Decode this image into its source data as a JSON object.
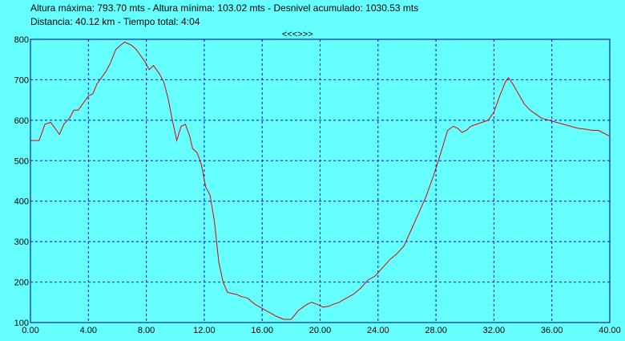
{
  "header": {
    "line1": "Altura máxima: 793.70 mts - Altura mínima: 103.02 mts - Desnivel acumulado: 1030.53 mts",
    "line2": "Distancia: 40.12 km - Tiempo total: 4:04"
  },
  "nav": {
    "label": "<<<>>>"
  },
  "colors": {
    "background": "#66FFFF",
    "line": "#E00000",
    "grid": "#0000FF",
    "axis": "#000080"
  },
  "chart_data": {
    "type": "line",
    "title": "",
    "xlabel": "",
    "ylabel": "",
    "xlim": [
      0,
      40
    ],
    "ylim": [
      100,
      800
    ],
    "grid": true,
    "x_ticks": [
      0,
      4,
      8,
      12,
      16,
      20,
      24,
      28,
      32,
      36,
      40
    ],
    "x_tick_labels": [
      "0.00",
      "4.00",
      "8.00",
      "12.00",
      "16.00",
      "20.00",
      "24.00",
      "28.00",
      "32.00",
      "36.00",
      "40.00"
    ],
    "y_ticks": [
      100,
      200,
      300,
      400,
      500,
      600,
      700,
      800
    ],
    "y_tick_labels": [
      "100",
      "200",
      "300",
      "400",
      "500",
      "600",
      "700",
      "800"
    ],
    "series": [
      {
        "x": [
          0,
          0.6,
          1.0,
          1.4,
          1.8,
          2.0,
          2.3,
          2.7,
          3.0,
          3.3,
          3.7,
          4.0,
          4.3,
          4.6,
          4.9,
          5.2,
          5.5,
          5.9,
          6.2,
          6.5,
          6.7,
          7.0,
          7.3,
          7.6,
          7.9,
          8.2,
          8.5,
          8.9,
          9.2,
          9.5,
          9.8,
          10.1,
          10.4,
          10.7,
          11.0,
          11.2,
          11.5,
          11.8,
          12.1,
          12.4,
          12.7,
          13.0,
          13.3,
          13.6,
          13.9,
          14.2,
          14.5,
          15.0,
          15.5,
          16.0,
          16.5,
          17.0,
          17.5,
          18.0,
          18.5,
          18.9,
          19.1,
          19.4,
          19.8,
          20.2,
          20.6,
          20.9,
          21.3,
          21.8,
          22.3,
          22.8,
          23.3,
          23.8,
          24.3,
          24.8,
          25.3,
          25.8,
          26.3,
          26.8,
          27.3,
          27.8,
          28.3,
          28.8,
          29.2,
          29.5,
          29.8,
          30.1,
          30.4,
          30.8,
          31.2,
          31.6,
          32.0,
          32.4,
          32.8,
          33.0,
          33.3,
          33.7,
          34.1,
          34.5,
          34.9,
          35.3,
          35.8,
          36.3,
          36.8,
          37.3,
          37.8,
          38.3,
          38.8,
          39.2,
          39.6,
          40.0
        ],
        "y": [
          550,
          550,
          590,
          595,
          575,
          565,
          590,
          605,
          625,
          625,
          645,
          660,
          665,
          690,
          705,
          720,
          740,
          775,
          785,
          793,
          790,
          785,
          775,
          760,
          745,
          725,
          735,
          715,
          695,
          655,
          600,
          550,
          585,
          590,
          560,
          530,
          520,
          490,
          435,
          415,
          350,
          250,
          200,
          175,
          172,
          170,
          165,
          160,
          145,
          135,
          125,
          115,
          108,
          108,
          130,
          140,
          145,
          150,
          145,
          138,
          140,
          145,
          150,
          160,
          170,
          185,
          205,
          215,
          235,
          255,
          270,
          290,
          330,
          370,
          410,
          460,
          515,
          575,
          585,
          580,
          570,
          575,
          585,
          590,
          595,
          600,
          620,
          660,
          695,
          705,
          690,
          665,
          640,
          625,
          615,
          605,
          600,
          595,
          590,
          585,
          580,
          578,
          575,
          575,
          568,
          560
        ]
      }
    ]
  }
}
